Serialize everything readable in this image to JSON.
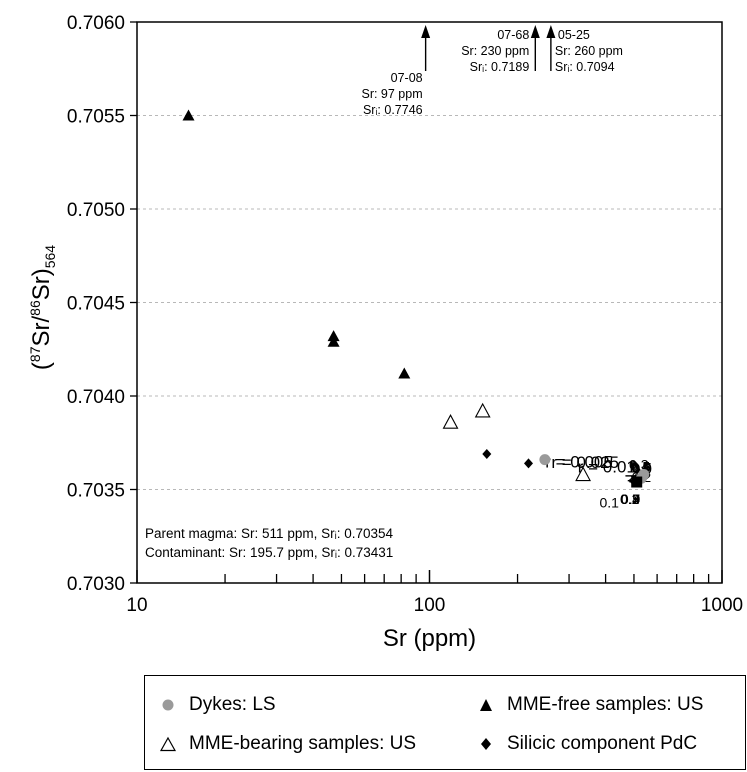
{
  "chart_data": {
    "type": "scatter",
    "xscale": "log",
    "xlim": [
      10,
      1000
    ],
    "ylim": [
      0.703,
      0.706
    ],
    "xlabel": "Sr (ppm)",
    "ylabel": "(87Sr/86Sr)564",
    "ylabel_parts": {
      "open": "(",
      "sup1": "87",
      "mid": "Sr/",
      "sup2": "86",
      "close": "Sr)",
      "sub": "564"
    },
    "x_major_ticks": [
      10,
      100,
      1000
    ],
    "x_tick_labels": [
      "10",
      "100",
      "1000"
    ],
    "y_ticks": [
      0.703,
      0.7035,
      0.704,
      0.7045,
      0.705,
      0.7055,
      0.706
    ],
    "y_tick_labels": [
      "0.7030",
      "0.7035",
      "0.7040",
      "0.7045",
      "0.7050",
      "0.7055",
      "0.7060"
    ],
    "grid": "horizontal dashed",
    "series": [
      {
        "name": "Dykes: LS",
        "marker": "circle-gray",
        "x": [
          248,
          540,
          530
        ],
        "y": [
          0.70366,
          0.70358,
          0.70356
        ]
      },
      {
        "name": "MME-free samples: US",
        "marker": "triangle-filled",
        "x": [
          15,
          47,
          47,
          82
        ],
        "y": [
          0.7055,
          0.70432,
          0.70429,
          0.70412
        ]
      },
      {
        "name": "MME-bearing samples: US",
        "marker": "triangle-open",
        "x": [
          118,
          152,
          335
        ],
        "y": [
          0.70386,
          0.70392,
          0.70358
        ]
      },
      {
        "name": "Silicic component PdC",
        "marker": "diamond-filled",
        "x": [
          157,
          218
        ],
        "y": [
          0.70369,
          0.70364
        ]
      }
    ],
    "parent_point": {
      "x": 511,
      "y": 0.70354
    },
    "parent_sr": 511,
    "parent_sri": 0.70354,
    "contaminant_sr": 195.7,
    "contaminant_sri": 0.73431,
    "curves": [
      {
        "label": "r = 0.005",
        "r": 0.005,
        "tick_labels": [
          {
            "F": 0.1,
            "text": "0.1"
          },
          {
            "F": 0.2,
            "text": "0.2"
          },
          {
            "F": 0.3,
            "text": "0.3"
          },
          {
            "F": 0.4,
            "text": "0.4"
          },
          {
            "F": 0.5,
            "text": "0.5"
          },
          {
            "F": 0.7,
            "text": "0.7"
          },
          {
            "F": 0.9,
            "text": "0.9"
          }
        ]
      },
      {
        "label": "r = 0.01",
        "r": 0.01,
        "tick_labels": []
      },
      {
        "label": "r = 0.025",
        "r": 0.025,
        "tick_labels": [
          {
            "F": 0.2,
            "text": "0.2"
          },
          {
            "F": 0.3,
            "text": "0.3"
          },
          {
            "F": 0.4,
            "text": "0.4"
          },
          {
            "F": 0.5,
            "text": "0.5"
          },
          {
            "F": 0.6,
            "text": "0.6"
          },
          {
            "F": 0.7,
            "text": "0.7"
          },
          {
            "F": 0.8,
            "text": "0.8"
          },
          {
            "F": 0.9,
            "text": "0.9"
          }
        ]
      }
    ],
    "offscale_samples": [
      {
        "id": "07-08",
        "x": 97,
        "sr": "Sr: 97 ppm",
        "sri": "Srᵢ: 0.7746"
      },
      {
        "id": "07-68",
        "x": 230,
        "sr": "Sr: 230 ppm",
        "sri": "Srᵢ: 0.7189"
      },
      {
        "id": "05-25",
        "x": 260,
        "sr": "Sr: 260 ppm",
        "sri": "Srᵢ: 0.7094"
      }
    ],
    "annotation_lines": [
      "Parent magma: Sr: 511 ppm, Srᵢ: 0.70354",
      "Contaminant: Sr: 195.7 ppm, Srᵢ: 0.73431"
    ],
    "legend": [
      {
        "label": "Dykes: LS",
        "marker": "circle-gray"
      },
      {
        "label": "MME-free samples: US",
        "marker": "triangle-filled"
      },
      {
        "label": "MME-bearing samples: US",
        "marker": "triangle-open"
      },
      {
        "label": "Silicic component PdC",
        "marker": "diamond-filled"
      }
    ],
    "colors": {
      "axis": "#000000",
      "grid": "#b8b8b8",
      "dyke": "#9a9a9a",
      "curve": "#1a1a1a"
    }
  }
}
